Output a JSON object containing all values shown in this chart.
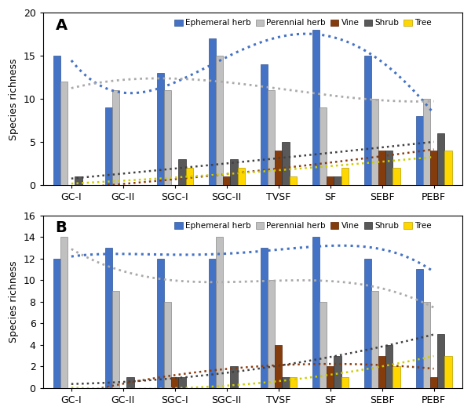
{
  "categories": [
    "GC-I",
    "GC-II",
    "SGC-I",
    "SGC-II",
    "TVSF",
    "SF",
    "SEBF",
    "PEBF"
  ],
  "panel_A": {
    "label": "A",
    "ylim": [
      0,
      20
    ],
    "yticks": [
      0,
      5,
      10,
      15,
      20
    ],
    "ephemeral_herb": [
      15,
      9,
      13,
      17,
      14,
      18,
      15,
      8
    ],
    "perennial_herb": [
      12,
      11,
      11,
      15,
      11,
      9,
      10,
      10
    ],
    "vine": [
      0,
      0,
      0,
      1,
      4,
      1,
      4,
      4
    ],
    "shrub": [
      1,
      0,
      3,
      3,
      5,
      1,
      4,
      6
    ],
    "tree": [
      0,
      0,
      2,
      2,
      1,
      2,
      2,
      4
    ]
  },
  "panel_B": {
    "label": "B",
    "ylim": [
      0,
      16
    ],
    "yticks": [
      0,
      2,
      4,
      6,
      8,
      10,
      12,
      14,
      16
    ],
    "ephemeral_herb": [
      12,
      13,
      12,
      12,
      13,
      14,
      12,
      11
    ],
    "perennial_herb": [
      14,
      9,
      8,
      14,
      10,
      8,
      9,
      8
    ],
    "vine": [
      0,
      0,
      1,
      0,
      4,
      2,
      3,
      1
    ],
    "shrub": [
      0,
      1,
      1,
      2,
      1,
      3,
      4,
      5
    ],
    "tree": [
      0,
      0,
      0,
      0,
      1,
      1,
      2,
      3
    ]
  },
  "colors": {
    "ephemeral_herb": "#4472C4",
    "perennial_herb": "#C0C0C0",
    "vine": "#843C0C",
    "shrub": "#595959",
    "tree": "#FFD700"
  },
  "edge_colors": {
    "ephemeral_herb": "#2F5496",
    "perennial_herb": "#888888",
    "vine": "#5C1F00",
    "shrub": "#2E2E2E",
    "tree": "#B8A000"
  },
  "dot_colors": {
    "ephemeral_herb": "#4472C4",
    "perennial_herb": "#AAAAAA",
    "vine": "#8B3A0C",
    "shrub": "#404040",
    "tree": "#CCCC00"
  },
  "legend_labels": [
    "Ephemeral herb",
    "Perennial herb",
    "Vine",
    "Shrub",
    "Tree"
  ],
  "ylabel": "Species richness",
  "bar_width": 0.14
}
